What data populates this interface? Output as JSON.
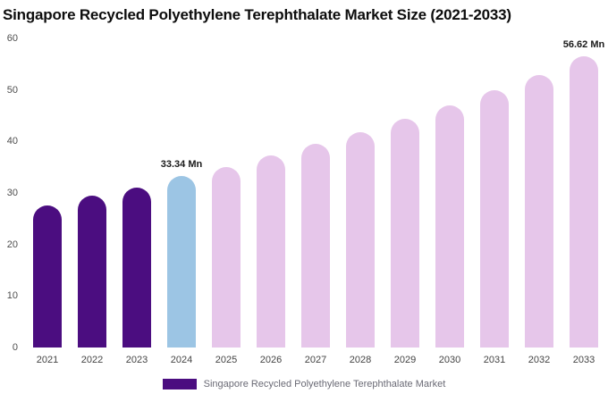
{
  "title": "Singapore Recycled Polyethylene Terephthalate Market Size (2021-2033)",
  "legend": {
    "label": "Singapore Recycled Polyethylene Terephthalate Market",
    "swatch_color": "#4B0D80"
  },
  "colors": {
    "historical_bar": "#4B0D80",
    "current_year_bar": "#9CC5E4",
    "forecast_bar": "#E6C6EA"
  },
  "chart_data": {
    "type": "bar",
    "title": "Singapore Recycled Polyethylene Terephthalate Market Size (2021-2033)",
    "xlabel": "",
    "ylabel": "",
    "categories": [
      "2021",
      "2022",
      "2023",
      "2024",
      "2025",
      "2026",
      "2027",
      "2028",
      "2029",
      "2030",
      "2031",
      "2032",
      "2033"
    ],
    "values": [
      27.5,
      29.4,
      31.0,
      33.34,
      35.1,
      37.2,
      39.5,
      41.8,
      44.4,
      47.0,
      49.9,
      52.9,
      56.62
    ],
    "unit": "Mn",
    "bar_colors": [
      "#4B0D80",
      "#4B0D80",
      "#4B0D80",
      "#9CC5E4",
      "#E6C6EA",
      "#E6C6EA",
      "#E6C6EA",
      "#E6C6EA",
      "#E6C6EA",
      "#E6C6EA",
      "#E6C6EA",
      "#E6C6EA",
      "#E6C6EA"
    ],
    "annotations": [
      {
        "category": "2024",
        "text": "33.34 Mn"
      },
      {
        "category": "2033",
        "text": "56.62 Mn"
      }
    ],
    "ylim": [
      0,
      60
    ],
    "yticks": [
      0,
      10,
      20,
      30,
      40,
      50,
      60
    ],
    "grid": false,
    "legend_position": "bottom",
    "legend_entries": [
      "Singapore Recycled Polyethylene Terephthalate Market"
    ]
  }
}
